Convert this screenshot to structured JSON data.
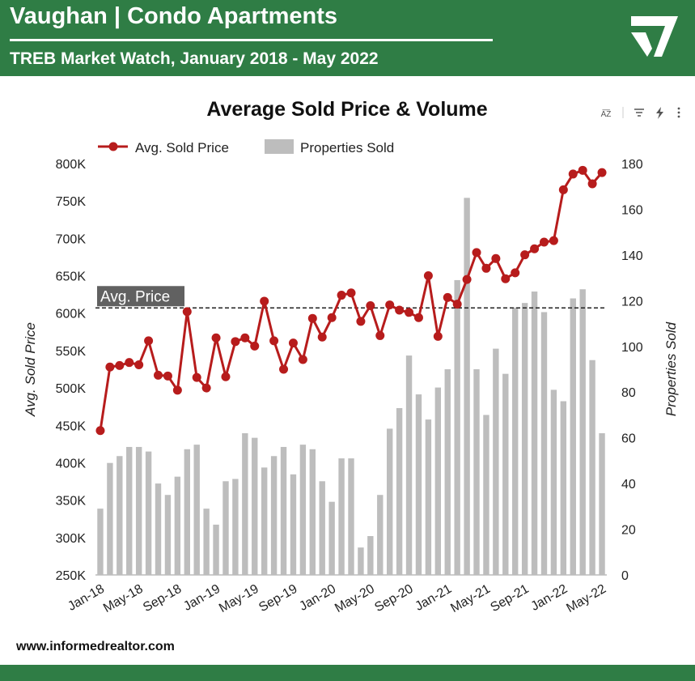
{
  "header": {
    "title": "Vaughan | Condo Apartments",
    "subtitle": "TREB Market Watch, January 2018 - May 2022",
    "logo_icon": "checkmark-triangle-logo-icon"
  },
  "toolbar": {
    "sort_label": "A͞Z",
    "icons": [
      "sort-az-icon",
      "filter-icon",
      "bolt-icon",
      "more-vert-icon"
    ]
  },
  "footer": {
    "url": "www.informedrealtor.com"
  },
  "colors": {
    "brand_green": "#2f7d45",
    "line": "#b71c1c",
    "bars": "#bdbdbd"
  },
  "chart_data": {
    "type": "bar",
    "title": "Average Sold Price & Volume",
    "ylabel": "Avg. Sold Price",
    "y2label": "Properties Sold",
    "ylim": [
      250000,
      800000
    ],
    "y2lim": [
      0,
      180
    ],
    "yticks": [
      "250K",
      "300K",
      "350K",
      "400K",
      "450K",
      "500K",
      "550K",
      "600K",
      "650K",
      "700K",
      "750K",
      "800K"
    ],
    "y2ticks": [
      "0",
      "20",
      "40",
      "60",
      "80",
      "100",
      "120",
      "140",
      "160",
      "180"
    ],
    "xtick_labels": [
      "Jan-18",
      "May-18",
      "Sep-18",
      "Jan-19",
      "May-19",
      "Sep-19",
      "Jan-20",
      "May-20",
      "Sep-20",
      "Jan-21",
      "May-21",
      "Sep-21",
      "Jan-22",
      "May-22"
    ],
    "legend_position": "top-left",
    "reference_line": {
      "label": "Avg. Price",
      "value": 607000
    },
    "categories": [
      "Jan-18",
      "Feb-18",
      "Mar-18",
      "Apr-18",
      "May-18",
      "Jun-18",
      "Jul-18",
      "Aug-18",
      "Sep-18",
      "Oct-18",
      "Nov-18",
      "Dec-18",
      "Jan-19",
      "Feb-19",
      "Mar-19",
      "Apr-19",
      "May-19",
      "Jun-19",
      "Jul-19",
      "Aug-19",
      "Sep-19",
      "Oct-19",
      "Nov-19",
      "Dec-19",
      "Jan-20",
      "Feb-20",
      "Mar-20",
      "Apr-20",
      "May-20",
      "Jun-20",
      "Jul-20",
      "Aug-20",
      "Sep-20",
      "Oct-20",
      "Nov-20",
      "Dec-20",
      "Jan-21",
      "Feb-21",
      "Mar-21",
      "Apr-21",
      "May-21",
      "Jun-21",
      "Jul-21",
      "Aug-21",
      "Sep-21",
      "Oct-21",
      "Nov-21",
      "Dec-21",
      "Jan-22",
      "Feb-22",
      "Mar-22",
      "Apr-22",
      "May-22"
    ],
    "series": [
      {
        "name": "Avg. Sold Price",
        "axis": "left",
        "type": "line",
        "values": [
          443000,
          528000,
          530000,
          534000,
          531000,
          563000,
          517000,
          516000,
          497000,
          602000,
          514000,
          500000,
          567000,
          515000,
          562000,
          567000,
          556000,
          616000,
          563000,
          525000,
          560000,
          538000,
          593000,
          568000,
          594000,
          624000,
          627000,
          589000,
          610000,
          570000,
          611000,
          604000,
          601000,
          594000,
          650000,
          569000,
          621000,
          612000,
          645000,
          681000,
          660000,
          673000,
          646000,
          654000,
          678000,
          686000,
          695000,
          697000,
          765000,
          786000,
          791000,
          773000,
          788000
        ]
      },
      {
        "name": "Properties Sold",
        "axis": "right",
        "type": "bar",
        "values": [
          29,
          49,
          52,
          56,
          56,
          54,
          40,
          35,
          43,
          55,
          57,
          29,
          22,
          41,
          42,
          62,
          60,
          47,
          52,
          56,
          44,
          57,
          55,
          41,
          32,
          51,
          51,
          12,
          17,
          35,
          64,
          73,
          96,
          79,
          68,
          82,
          90,
          129,
          165,
          90,
          70,
          99,
          88,
          117,
          119,
          124,
          115,
          81,
          76,
          121,
          125,
          94,
          62
        ]
      }
    ]
  }
}
